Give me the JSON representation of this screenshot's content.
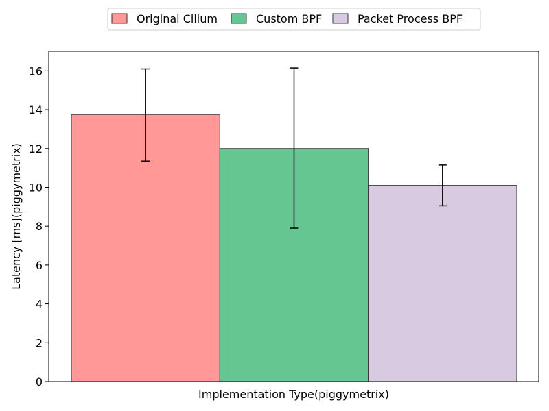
{
  "chart_data": {
    "type": "bar",
    "xlabel": "Implementation Type(piggymetrix)",
    "ylabel": "Latency [ms](piggymetrix)",
    "ylim": [
      0,
      17
    ],
    "yticks": [
      0,
      2,
      4,
      6,
      8,
      10,
      12,
      14,
      16
    ],
    "grid": false,
    "legend_position": "top-center",
    "series": [
      {
        "name": "Original Cilium",
        "value": 13.75,
        "error_low": 11.35,
        "error_high": 16.1,
        "color": "#ff9896"
      },
      {
        "name": "Custom BPF",
        "value": 12.0,
        "error_low": 7.9,
        "error_high": 16.15,
        "color": "#66c692"
      },
      {
        "name": "Packet Process BPF",
        "value": 10.1,
        "error_low": 9.05,
        "error_high": 11.15,
        "color": "#d8cae1"
      }
    ]
  }
}
